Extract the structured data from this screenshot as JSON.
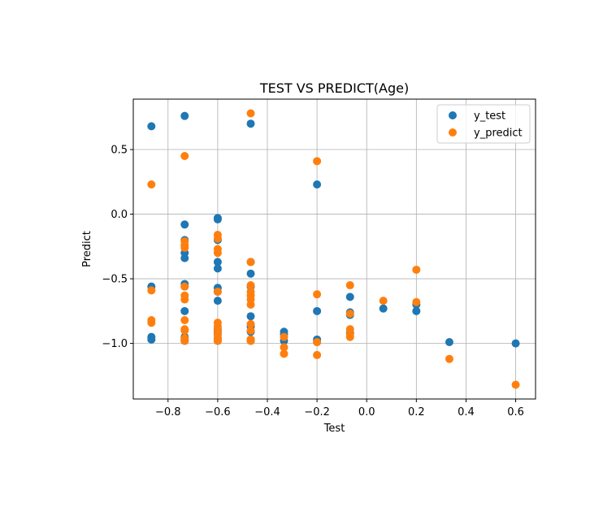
{
  "chart_data": {
    "type": "scatter",
    "title": "TEST VS PREDICT(Age)",
    "xlabel": "Test",
    "ylabel": "Predict",
    "xlim": [
      -0.94,
      0.68
    ],
    "ylim": [
      -1.43,
      0.89
    ],
    "xticks": [
      -0.8,
      -0.6,
      -0.4,
      -0.2,
      0.0,
      0.2,
      0.4,
      0.6
    ],
    "xtick_labels": [
      "−0.8",
      "−0.6",
      "−0.4",
      "−0.2",
      "0.0",
      "0.2",
      "0.4",
      "0.6"
    ],
    "yticks": [
      0.5,
      0.0,
      -0.5,
      -1.0
    ],
    "ytick_labels": [
      "0.5",
      "0.0",
      "−0.5",
      "−1.0"
    ],
    "grid": true,
    "legend_position": "top-right",
    "series": [
      {
        "name": "y_test",
        "color": "#1f77b4",
        "x": [
          -0.867,
          -0.867,
          -0.867,
          -0.867,
          -0.733,
          -0.733,
          -0.733,
          -0.733,
          -0.733,
          -0.733,
          -0.733,
          -0.733,
          -0.733,
          -0.733,
          -0.733,
          -0.6,
          -0.6,
          -0.6,
          -0.6,
          -0.6,
          -0.6,
          -0.6,
          -0.6,
          -0.6,
          -0.6,
          -0.6,
          -0.6,
          -0.6,
          -0.467,
          -0.467,
          -0.467,
          -0.467,
          -0.467,
          -0.467,
          -0.467,
          -0.467,
          -0.467,
          -0.333,
          -0.333,
          -0.333,
          -0.2,
          -0.2,
          -0.2,
          -0.2,
          -0.067,
          -0.067,
          -0.067,
          -0.067,
          0.067,
          0.2,
          0.2,
          0.333,
          0.6
        ],
        "y": [
          0.68,
          -0.56,
          -0.95,
          -0.97,
          0.76,
          -0.08,
          -0.2,
          -0.3,
          -0.34,
          -0.54,
          -0.56,
          -0.75,
          -0.95,
          -0.97,
          -0.98,
          -0.03,
          -0.04,
          -0.2,
          -0.37,
          -0.42,
          -0.57,
          -0.6,
          -0.67,
          -0.89,
          -0.91,
          -0.93,
          -0.96,
          -0.98,
          0.7,
          -0.37,
          -0.46,
          -0.56,
          -0.79,
          -0.87,
          -0.91,
          -0.97,
          -0.98,
          -0.91,
          -0.93,
          -0.98,
          0.23,
          -0.75,
          -0.97,
          -0.99,
          -0.64,
          -0.76,
          -0.78,
          -0.92,
          -0.73,
          -0.7,
          -0.75,
          -0.99,
          -1.0
        ]
      },
      {
        "name": "y_predict",
        "color": "#ff7f0e",
        "x": [
          -0.867,
          -0.867,
          -0.867,
          -0.867,
          -0.733,
          -0.733,
          -0.733,
          -0.733,
          -0.733,
          -0.733,
          -0.733,
          -0.733,
          -0.733,
          -0.733,
          -0.733,
          -0.733,
          -0.6,
          -0.6,
          -0.6,
          -0.6,
          -0.6,
          -0.6,
          -0.6,
          -0.6,
          -0.6,
          -0.6,
          -0.6,
          -0.467,
          -0.467,
          -0.467,
          -0.467,
          -0.467,
          -0.467,
          -0.467,
          -0.467,
          -0.467,
          -0.467,
          -0.467,
          -0.333,
          -0.333,
          -0.333,
          -0.2,
          -0.2,
          -0.2,
          -0.2,
          -0.067,
          -0.067,
          -0.067,
          -0.067,
          -0.067,
          0.067,
          0.2,
          0.2,
          0.333,
          0.6
        ],
        "y": [
          0.23,
          -0.59,
          -0.82,
          -0.84,
          0.45,
          -0.21,
          -0.24,
          -0.26,
          -0.56,
          -0.63,
          -0.66,
          -0.82,
          -0.89,
          -0.9,
          -0.96,
          -0.98,
          -0.16,
          -0.19,
          -0.27,
          -0.3,
          -0.6,
          -0.84,
          -0.87,
          -0.9,
          -0.93,
          -0.96,
          -0.98,
          0.78,
          -0.37,
          -0.55,
          -0.6,
          -0.63,
          -0.66,
          -0.7,
          -0.85,
          -0.9,
          -0.97,
          -0.98,
          -0.95,
          -1.03,
          -1.08,
          0.41,
          -0.62,
          -0.99,
          -1.09,
          -0.55,
          -0.77,
          -0.89,
          -0.93,
          -0.95,
          -0.67,
          -0.43,
          -0.68,
          -1.12,
          -1.32
        ]
      }
    ]
  }
}
